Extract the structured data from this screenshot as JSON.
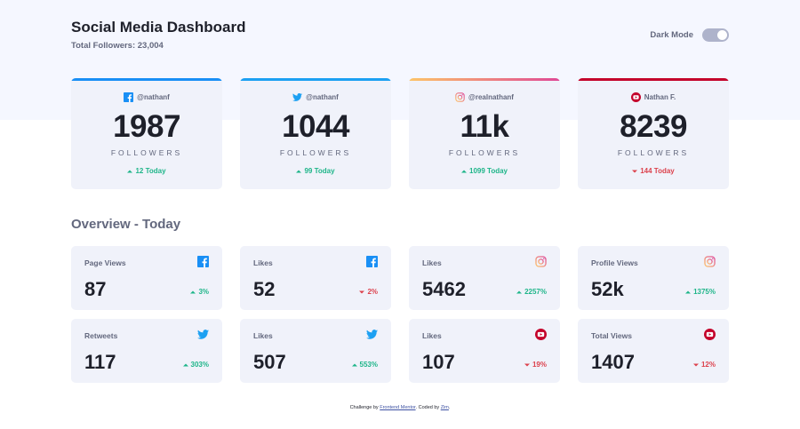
{
  "header": {
    "title": "Social Media Dashboard",
    "subtitle": "Total Followers: 23,004",
    "dark_mode_label": "Dark Mode"
  },
  "colors": {
    "facebook": "#198ff5",
    "twitter": "#1ca0f2",
    "instagram_gradient": [
      "#fdc468",
      "#df4996"
    ],
    "youtube": "#c4032b",
    "up": "#1eb589",
    "down": "#dc414c"
  },
  "followers": [
    {
      "network": "facebook",
      "icon": "facebook-icon",
      "handle": "@nathanf",
      "count": "1987",
      "label": "FOLLOWERS",
      "today": "12 Today",
      "trend": "up"
    },
    {
      "network": "twitter",
      "icon": "twitter-icon",
      "handle": "@nathanf",
      "count": "1044",
      "label": "FOLLOWERS",
      "today": "99 Today",
      "trend": "up"
    },
    {
      "network": "instagram",
      "icon": "instagram-icon",
      "handle": "@realnathanf",
      "count": "11k",
      "label": "FOLLOWERS",
      "today": "1099 Today",
      "trend": "up"
    },
    {
      "network": "youtube",
      "icon": "youtube-icon",
      "handle": "Nathan F.",
      "count": "8239",
      "label": "FOLLOWERS",
      "today": "144 Today",
      "trend": "down"
    }
  ],
  "overview": {
    "title": "Overview - Today",
    "cards": [
      {
        "label": "Page Views",
        "icon": "facebook-icon",
        "value": "87",
        "pct": "3%",
        "trend": "up"
      },
      {
        "label": "Likes",
        "icon": "facebook-icon",
        "value": "52",
        "pct": "2%",
        "trend": "down"
      },
      {
        "label": "Likes",
        "icon": "instagram-icon",
        "value": "5462",
        "pct": "2257%",
        "trend": "up"
      },
      {
        "label": "Profile Views",
        "icon": "instagram-icon",
        "value": "52k",
        "pct": "1375%",
        "trend": "up"
      },
      {
        "label": "Retweets",
        "icon": "twitter-icon",
        "value": "117",
        "pct": "303%",
        "trend": "up"
      },
      {
        "label": "Likes",
        "icon": "twitter-icon",
        "value": "507",
        "pct": "553%",
        "trend": "up"
      },
      {
        "label": "Likes",
        "icon": "youtube-icon",
        "value": "107",
        "pct": "19%",
        "trend": "down"
      },
      {
        "label": "Total Views",
        "icon": "youtube-icon",
        "value": "1407",
        "pct": "12%",
        "trend": "down"
      }
    ]
  },
  "footer": {
    "prefix": "Challenge by ",
    "link1": "Frontend Mentor",
    "middle": ". Coded by ",
    "link2": "Zim",
    "suffix": "."
  }
}
